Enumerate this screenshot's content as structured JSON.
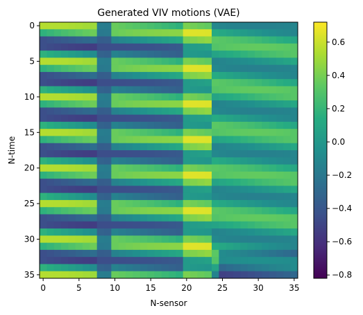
{
  "chart_data": {
    "type": "heatmap",
    "title": "Generated VIV motions (VAE)",
    "xlabel": "N-sensor",
    "ylabel": "N-time",
    "xlim": [
      -0.5,
      35.5
    ],
    "ylim": [
      35.5,
      -0.5
    ],
    "x_ticks": [
      0,
      5,
      10,
      15,
      20,
      25,
      30,
      35
    ],
    "y_ticks": [
      0,
      5,
      10,
      15,
      20,
      25,
      30,
      35
    ],
    "colormap": "viridis",
    "colorbar": {
      "range": [
        -0.82,
        0.72
      ],
      "ticks": [
        0.6,
        0.4,
        0.2,
        0.0,
        -0.2,
        -0.4,
        -0.6,
        -0.8
      ],
      "tick_labels": [
        "0.6",
        "0.4",
        "0.2",
        "0.0",
        "−0.2",
        "−0.4",
        "−0.6",
        "−0.8"
      ]
    },
    "grid": false,
    "interpolation": "bicubic",
    "n_rows": 36,
    "n_cols": 36
  }
}
